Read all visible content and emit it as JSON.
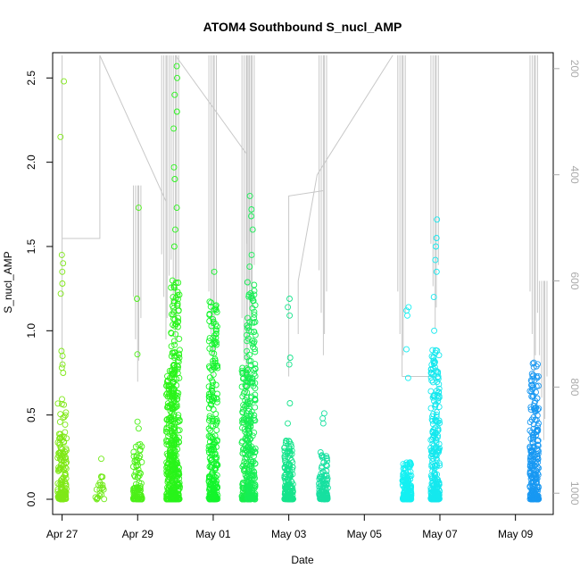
{
  "chart_data": {
    "type": "scatter",
    "title": "ATOM4 Southbound S_nucl_AMP",
    "xlabel": "Date",
    "ylabel": "S_nucl_AMP",
    "x_ticks": [
      "Apr 27",
      "Apr 29",
      "May 01",
      "May 03",
      "May 05",
      "May 07",
      "May 09"
    ],
    "xlim": [
      "2023-04-26T18:00",
      "2023-05-10T00:00"
    ],
    "y_ticks": [
      0.0,
      0.5,
      1.0,
      1.5,
      2.0,
      2.5
    ],
    "ylim": [
      0,
      2.65
    ],
    "y2_ticks": [
      200,
      400,
      600,
      800,
      1000
    ],
    "y2lim": [
      1040,
      170
    ],
    "y2_axis": "depth (right, inverted, gray)",
    "marker": "open circle",
    "color_scale": "time (yellow-green → green → cyan → blue)",
    "point_groups": [
      {
        "x": "2023-04-27T00:00",
        "count": 140,
        "ymin": 0.0,
        "ymax": 0.6,
        "outliers": [
          0.75,
          0.78,
          0.8,
          0.85,
          0.88,
          1.22,
          1.28,
          1.35,
          1.4,
          1.45,
          2.15,
          2.48
        ],
        "color": "#7fe817"
      },
      {
        "x": "2023-04-28T00:00",
        "count": 20,
        "ymin": 0.0,
        "ymax": 0.14,
        "outliers": [
          0.24
        ],
        "color": "#70ea18"
      },
      {
        "x": "2023-04-29T00:00",
        "count": 90,
        "ymin": 0.0,
        "ymax": 0.34,
        "outliers": [
          0.42,
          0.46,
          0.86,
          1.19,
          1.73
        ],
        "color": "#4cf018"
      },
      {
        "x": "2023-04-29T21:00",
        "count": 240,
        "ymin": 0.0,
        "ymax": 0.8,
        "outliers": [],
        "color": "#30f31a"
      },
      {
        "x": "2023-04-30T00:00",
        "count": 260,
        "ymin": 0.0,
        "ymax": 1.3,
        "outliers": [
          1.5,
          1.6,
          1.73,
          1.9,
          1.97,
          2.2,
          2.3,
          2.4,
          2.5,
          2.57
        ],
        "color": "#28f41a"
      },
      {
        "x": "2023-05-01T00:00",
        "count": 260,
        "ymin": 0.0,
        "ymax": 1.2,
        "outliers": [
          1.35
        ],
        "color": "#14f52c"
      },
      {
        "x": "2023-05-01T21:00",
        "count": 170,
        "ymin": 0.0,
        "ymax": 0.78,
        "outliers": [],
        "color": "#18ee4a"
      },
      {
        "x": "2023-05-02T00:00",
        "count": 200,
        "ymin": 0.0,
        "ymax": 1.3,
        "outliers": [
          1.38,
          1.45,
          1.6,
          1.68,
          1.72,
          1.8
        ],
        "color": "#17ee55"
      },
      {
        "x": "2023-05-03T00:00",
        "count": 160,
        "ymin": 0.0,
        "ymax": 0.35,
        "outliers": [
          0.45,
          0.57,
          0.8,
          0.84,
          1.09,
          1.14,
          1.19
        ],
        "color": "#16e48c"
      },
      {
        "x": "2023-05-03T22:00",
        "count": 110,
        "ymin": 0.0,
        "ymax": 0.28,
        "outliers": [
          0.45,
          0.48,
          0.51
        ],
        "color": "#17e0a0"
      },
      {
        "x": "2023-05-06T03:00",
        "count": 150,
        "ymin": 0.0,
        "ymax": 0.22,
        "outliers": [
          0.72,
          0.89,
          1.09,
          1.12,
          1.14
        ],
        "color": "#14f0f2"
      },
      {
        "x": "2023-05-06T21:00",
        "count": 260,
        "ymin": 0.0,
        "ymax": 0.9,
        "outliers": [
          1.0,
          1.2,
          1.35,
          1.42,
          1.5,
          1.55,
          1.66
        ],
        "color": "#15e8ee"
      },
      {
        "x": "2023-05-09T12:00",
        "count": 240,
        "ymin": 0.0,
        "ymax": 0.83,
        "outliers": [],
        "color": "#1898f2"
      }
    ],
    "depth_trace": {
      "color": "#c8c8c8",
      "segments": [
        {
          "x": [
            "2023-04-27T00:00",
            "2023-04-27T00:00",
            "2023-04-27T00:00",
            "2023-04-28T00:00",
            "2023-04-28T00:00"
          ],
          "depth": [
            175,
            760,
            520,
            520,
            175
          ]
        },
        {
          "x": [
            "2023-04-28T00:00",
            "2023-04-29T18:00"
          ],
          "depth": [
            175,
            450
          ]
        },
        {
          "x": [
            "2023-04-29T00:00",
            "2023-04-29T00:00"
          ],
          "depth": [
            420,
            790
          ]
        },
        {
          "x": [
            "2023-04-29T18:00",
            "2023-04-29T18:00"
          ],
          "depth": [
            175,
            710
          ]
        },
        {
          "x": [
            "2023-04-30T00:00",
            "2023-04-30T00:00"
          ],
          "depth": [
            175,
            720
          ]
        },
        {
          "x": [
            "2023-04-30T00:00",
            "2023-05-01T21:00"
          ],
          "depth": [
            175,
            360
          ]
        },
        {
          "x": [
            "2023-05-01T00:00",
            "2023-05-01T00:00"
          ],
          "depth": [
            175,
            780
          ]
        },
        {
          "x": [
            "2023-05-01T21:00",
            "2023-05-01T21:00"
          ],
          "depth": [
            175,
            830
          ]
        },
        {
          "x": [
            "2023-05-02T00:00",
            "2023-05-02T00:00"
          ],
          "depth": [
            175,
            690
          ]
        },
        {
          "x": [
            "2023-05-03T00:00",
            "2023-05-03T00:00",
            "2023-05-03T22:00"
          ],
          "depth": [
            780,
            440,
            430
          ]
        },
        {
          "x": [
            "2023-05-03T06:00",
            "2023-05-03T06:00",
            "2023-05-03T18:00",
            "2023-05-05T18:00"
          ],
          "depth": [
            700,
            600,
            400,
            175
          ]
        },
        {
          "x": [
            "2023-05-03T22:00",
            "2023-05-03T22:00"
          ],
          "depth": [
            175,
            740
          ]
        },
        {
          "x": [
            "2023-05-06T00:00",
            "2023-05-06T00:00"
          ],
          "depth": [
            175,
            780
          ]
        },
        {
          "x": [
            "2023-05-06T00:00",
            "2023-05-06T21:00"
          ],
          "depth": [
            780,
            780
          ]
        },
        {
          "x": [
            "2023-05-06T21:00",
            "2023-05-06T21:00"
          ],
          "depth": [
            175,
            690
          ]
        },
        {
          "x": [
            "2023-05-09T12:00",
            "2023-05-09T12:00"
          ],
          "depth": [
            175,
            780
          ]
        },
        {
          "x": [
            "2023-05-09T18:00",
            "2023-05-09T18:00"
          ],
          "depth": [
            600,
            900
          ]
        }
      ]
    }
  }
}
